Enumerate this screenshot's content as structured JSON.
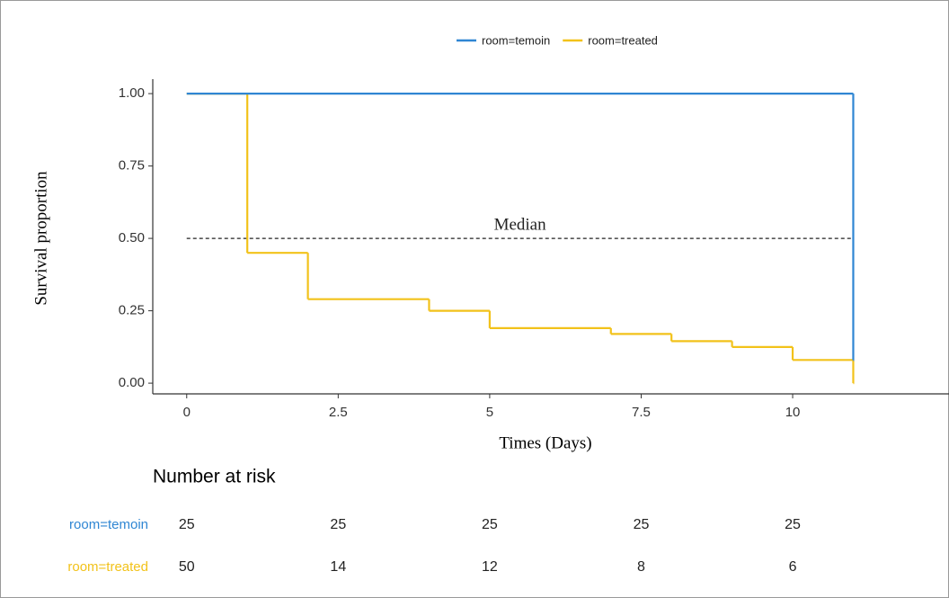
{
  "chart_data": {
    "type": "step",
    "x_label": "Times (Days)",
    "y_label": "Survival proportion",
    "xlim": [
      -0.56,
      12.58
    ],
    "ylim": [
      -0.037,
      1.05
    ],
    "xticks": [
      0,
      2.5,
      5,
      7.5,
      10
    ],
    "yticks": [
      {
        "value": 0,
        "label": "0.00"
      },
      {
        "value": 0.25,
        "label": "0.25"
      },
      {
        "value": 0.5,
        "label": "0.50"
      },
      {
        "value": 0.75,
        "label": "0.75"
      },
      {
        "value": 1,
        "label": "1.00"
      }
    ],
    "series": [
      {
        "name": "room=temoin",
        "color": "#2f86d3",
        "x": [
          0,
          11
        ],
        "values": [
          1,
          0.08
        ]
      },
      {
        "name": "room=treated",
        "color": "#f2c21a",
        "x": [
          0,
          1,
          2,
          4,
          5,
          7,
          8,
          9,
          10,
          11
        ],
        "values": [
          1,
          0.45,
          0.29,
          0.25,
          0.19,
          0.17,
          0.145,
          0.125,
          0.08,
          0
        ]
      }
    ],
    "median": {
      "label": "Median",
      "value": 0.5
    },
    "risk_table": {
      "title": "Number at risk",
      "times": [
        0,
        2.5,
        5,
        7.5,
        10
      ],
      "rows": [
        [
          25,
          25,
          25,
          25,
          25
        ],
        [
          50,
          14,
          12,
          8,
          6
        ]
      ]
    }
  }
}
